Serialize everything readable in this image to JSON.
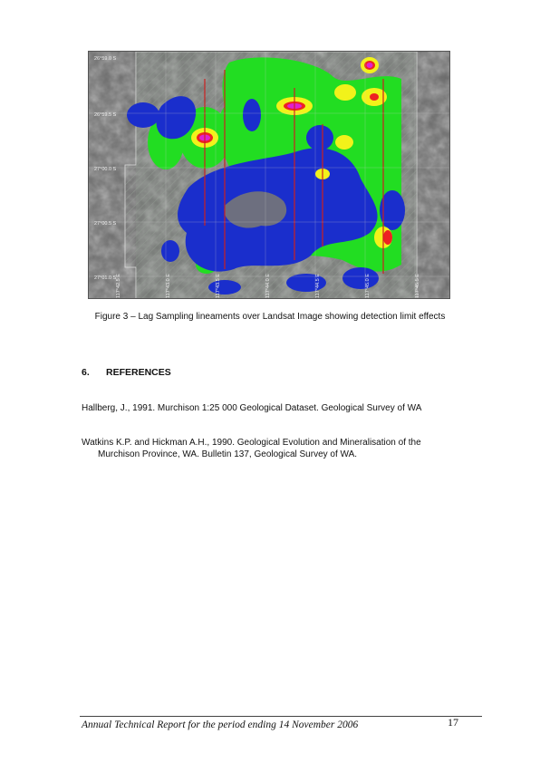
{
  "figure": {
    "lat_labels": [
      "26°59.0 S",
      "26°59.5 S",
      "27°00.0 S",
      "27°00.5 S",
      "27°01.0 S"
    ],
    "lon_labels": [
      "117°42.5 E",
      "117°43.0 E",
      "117°43.5 E",
      "117°44.0 E",
      "117°44.5 E",
      "117°45.0 E",
      "117°45.5 E"
    ]
  },
  "caption": "Figure 3 – Lag Sampling lineaments over Landsat Image showing detection limit effects",
  "section": {
    "number": "6.",
    "title": "REFERENCES"
  },
  "references": [
    "Hallberg, J., 1991.  Murchison 1:25 000 Geological Dataset. Geological Survey of WA",
    "Watkins K.P. and Hickman A.H., 1990. Geological Evolution and Mineralisation of the Murchison Province, WA. Bulletin 137, Geological Survey of WA."
  ],
  "footer": {
    "text": "Annual Technical Report for the period ending 14 November 2006",
    "page": "17"
  }
}
